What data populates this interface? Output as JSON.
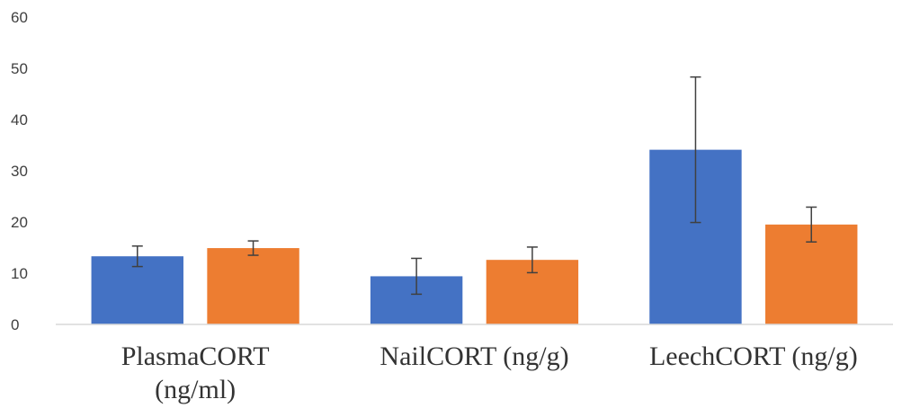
{
  "chart_data": {
    "type": "bar",
    "title": "",
    "xlabel": "",
    "ylabel": "",
    "ylim": [
      0,
      60
    ],
    "yticks": [
      0,
      10,
      20,
      30,
      40,
      50,
      60
    ],
    "grid": false,
    "legend": "none",
    "categories": [
      [
        "PlasmaCORT",
        "(ng/ml)"
      ],
      [
        "NailCORT (ng/g)"
      ],
      [
        "LeechCORT (ng/g)"
      ]
    ],
    "series": [
      {
        "color": "#4472c4",
        "values": [
          13.3,
          9.4,
          34.1
        ],
        "error": [
          2.0,
          3.5,
          14.2
        ]
      },
      {
        "color": "#ed7d31",
        "values": [
          14.9,
          12.6,
          19.5
        ],
        "error": [
          1.4,
          2.5,
          3.4
        ]
      }
    ]
  }
}
